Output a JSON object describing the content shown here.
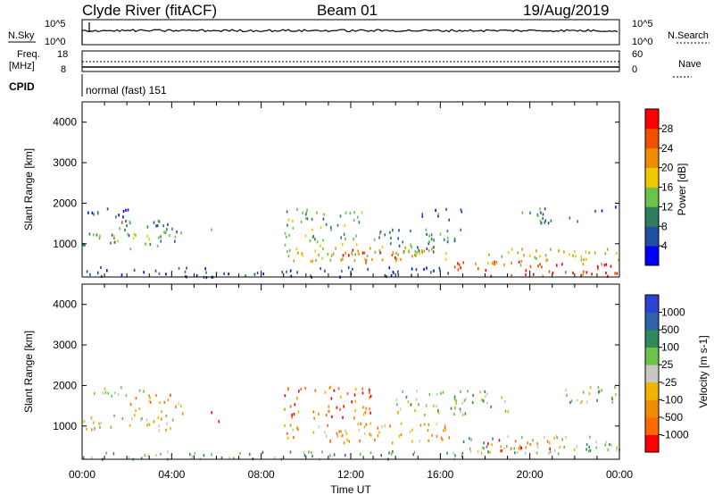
{
  "header": {
    "station": "Clyde River (fitACF)",
    "beam": "Beam 01",
    "date": "19/Aug/2019"
  },
  "panels_top": {
    "nsky": {
      "left_label": "N.Sky",
      "left_top": "10^5",
      "left_bottom": "10^0",
      "right_label": "N.Search",
      "right_top": "10^5",
      "right_bottom": "10^0"
    },
    "freq": {
      "left_label_1": "Freq.",
      "left_label_2": "[MHz]",
      "left_top": "18",
      "left_bottom": "8",
      "right_label": "Nave",
      "right_top": "60",
      "right_bottom": "0"
    },
    "cpid": {
      "label": "CPID",
      "text": "normal (fast) 151"
    }
  },
  "colors": {
    "power": [
      "#0000ff",
      "#1f4fa0",
      "#2e7d5e",
      "#6dc24a",
      "#f0c800",
      "#f08c00",
      "#f05000",
      "#ff0000"
    ],
    "velocity": [
      "#2a43d4",
      "#2e63a8",
      "#2f8a5a",
      "#6cc24a",
      "#c8c8be",
      "#f0b400",
      "#f08c00",
      "#ff6a00",
      "#ff0000"
    ]
  },
  "chart_data": [
    {
      "type": "heatmap",
      "title": "",
      "xlabel": "",
      "ylabel": "Slant Range [km]",
      "xlim_hours": [
        0,
        24
      ],
      "ylim": [
        180,
        4500
      ],
      "xticks": [
        "00:00",
        "04:00",
        "08:00",
        "12:00",
        "16:00",
        "20:00",
        "00:00"
      ],
      "yticks": [
        1000,
        2000,
        3000,
        4000
      ],
      "colorbar": {
        "label": "Power [dB]",
        "ticks": [
          4,
          8,
          12,
          16,
          20,
          24,
          28
        ],
        "range": [
          0,
          32
        ]
      },
      "echo_regions": [
        {
          "t0": 0.0,
          "t1": 2.2,
          "r0": 1650,
          "r1": 1900,
          "level": 0.15
        },
        {
          "t0": 0.0,
          "t1": 3.5,
          "r0": 900,
          "r1": 1300,
          "level": 0.45
        },
        {
          "t0": 0.5,
          "t1": 4.5,
          "r0": 1200,
          "r1": 1600,
          "level": 0.3
        },
        {
          "t0": 1.6,
          "t1": 1.9,
          "r0": 1550,
          "r1": 1650,
          "level": 0.85
        },
        {
          "t0": 3.2,
          "t1": 4.2,
          "r0": 1000,
          "r1": 1500,
          "level": 0.4
        },
        {
          "t0": 5.5,
          "t1": 6.0,
          "r0": 1100,
          "r1": 1500,
          "level": 0.35
        },
        {
          "t0": 9.0,
          "t1": 16.5,
          "r0": 600,
          "r1": 1000,
          "level": 0.55
        },
        {
          "t0": 9.0,
          "t1": 12.5,
          "r0": 1000,
          "r1": 1900,
          "level": 0.4
        },
        {
          "t0": 11.0,
          "t1": 14.5,
          "r0": 550,
          "r1": 900,
          "level": 0.8
        },
        {
          "t0": 13.0,
          "t1": 17.0,
          "r0": 800,
          "r1": 1400,
          "level": 0.3
        },
        {
          "t0": 15.0,
          "t1": 17.0,
          "r0": 1600,
          "r1": 1900,
          "level": 0.25
        },
        {
          "t0": 16.5,
          "t1": 24.0,
          "r0": 200,
          "r1": 600,
          "level": 0.9
        },
        {
          "t0": 18.0,
          "t1": 24.0,
          "r0": 500,
          "r1": 900,
          "level": 0.55
        },
        {
          "t0": 19.5,
          "t1": 22.5,
          "r0": 1500,
          "r1": 1900,
          "level": 0.3
        },
        {
          "t0": 22.5,
          "t1": 24.0,
          "r0": 1700,
          "r1": 1950,
          "level": 0.25
        },
        {
          "t0": 0.0,
          "t1": 16.5,
          "r0": 200,
          "r1": 450,
          "level": 0.15
        }
      ]
    },
    {
      "type": "heatmap",
      "title": "",
      "xlabel": "Time UT",
      "ylabel": "Slant Range [km]",
      "xlim_hours": [
        0,
        24
      ],
      "ylim": [
        180,
        4500
      ],
      "xticks": [
        "00:00",
        "04:00",
        "08:00",
        "12:00",
        "16:00",
        "20:00",
        "00:00"
      ],
      "yticks": [
        1000,
        2000,
        3000,
        4000
      ],
      "colorbar": {
        "label": "Velocity [m s-1]",
        "ticks": [
          "1000",
          "500",
          "100",
          "25",
          "-25",
          "-100",
          "-500",
          "-1000"
        ]
      },
      "echo_regions": [
        {
          "t0": 0.0,
          "t1": 3.0,
          "r0": 1700,
          "r1": 2000,
          "level": 0.5
        },
        {
          "t0": 0.0,
          "t1": 4.5,
          "r0": 900,
          "r1": 1300,
          "level": 0.55
        },
        {
          "t0": 2.0,
          "t1": 4.5,
          "r0": 1300,
          "r1": 1800,
          "level": 0.7
        },
        {
          "t0": 5.5,
          "t1": 6.2,
          "r0": 1100,
          "r1": 1500,
          "level": 0.85
        },
        {
          "t0": 9.0,
          "t1": 13.0,
          "r0": 1200,
          "r1": 2000,
          "level": 0.8
        },
        {
          "t0": 9.0,
          "t1": 16.5,
          "r0": 600,
          "r1": 1100,
          "level": 0.65
        },
        {
          "t0": 14.0,
          "t1": 19.0,
          "r0": 1300,
          "r1": 1900,
          "level": 0.45
        },
        {
          "t0": 17.0,
          "t1": 24.0,
          "r0": 350,
          "r1": 800,
          "level": 0.45
        },
        {
          "t0": 18.0,
          "t1": 21.5,
          "r0": 400,
          "r1": 700,
          "level": 0.8
        },
        {
          "t0": 21.5,
          "t1": 24.0,
          "r0": 1600,
          "r1": 2000,
          "level": 0.45
        },
        {
          "t0": 0.0,
          "t1": 17.0,
          "r0": 200,
          "r1": 400,
          "level": 0.35
        }
      ]
    }
  ]
}
